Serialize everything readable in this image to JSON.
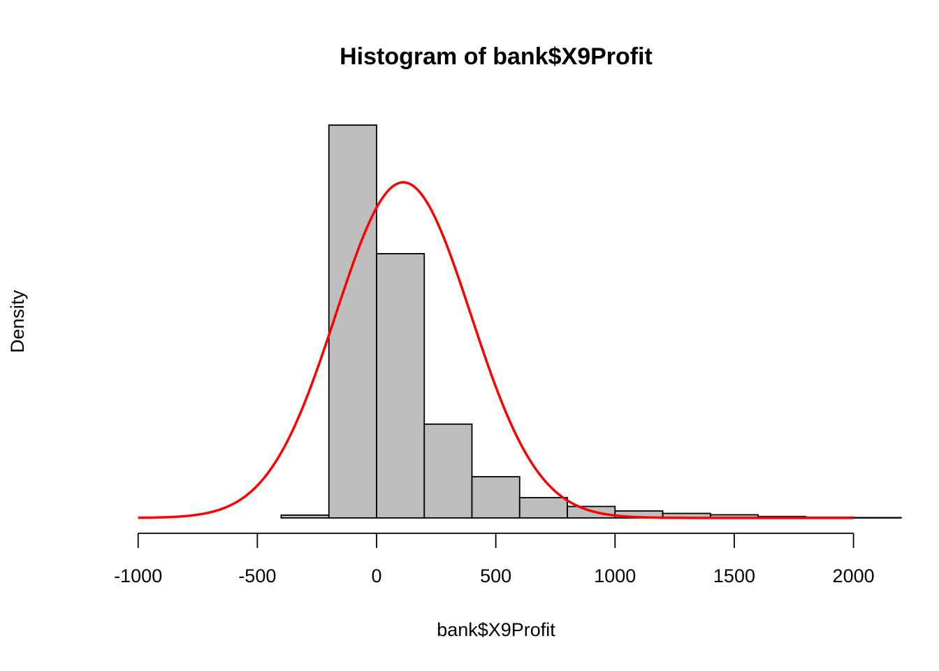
{
  "chart_data": {
    "type": "bar",
    "title": "Histogram of bank$X9Profit",
    "xlabel": "bank$X9Profit",
    "ylabel": "Density",
    "xlim": [
      -1000,
      2100
    ],
    "ylim": [
      0,
      0.00165
    ],
    "x_ticks": [
      -1000,
      -500,
      0,
      500,
      1000,
      1500,
      2000
    ],
    "x_tick_labels": [
      "-1000",
      "-500",
      "0",
      "500",
      "1000",
      "1500",
      "2000"
    ],
    "y_axis_shown": false,
    "grid": false,
    "bin_width": 200,
    "bins": [
      {
        "start": -400,
        "end": -200,
        "density": 1.17e-05
      },
      {
        "start": -200,
        "end": 0,
        "density": 0.00165
      },
      {
        "start": 0,
        "end": 200,
        "density": 0.00111
      },
      {
        "start": 200,
        "end": 400,
        "density": 0.000394
      },
      {
        "start": 400,
        "end": 600,
        "density": 0.000173
      },
      {
        "start": 600,
        "end": 800,
        "density": 8.52e-05
      },
      {
        "start": 800,
        "end": 1000,
        "density": 4.83e-05
      },
      {
        "start": 1000,
        "end": 1200,
        "density": 2.93e-05
      },
      {
        "start": 1200,
        "end": 1400,
        "density": 1.9e-05
      },
      {
        "start": 1400,
        "end": 1600,
        "density": 1.32e-05
      },
      {
        "start": 1600,
        "end": 1800,
        "density": 5.9e-06
      },
      {
        "start": 1800,
        "end": 2000,
        "density": 2.9e-06
      },
      {
        "start": 2000,
        "end": 2200,
        "density": 1.5e-06
      }
    ],
    "bar_fill": "#bebebe",
    "bar_stroke": "#000000",
    "normal_curve": {
      "mean": 112,
      "sd": 283,
      "x_range": [
        -1000,
        2000
      ],
      "color": "#ff0000"
    }
  }
}
